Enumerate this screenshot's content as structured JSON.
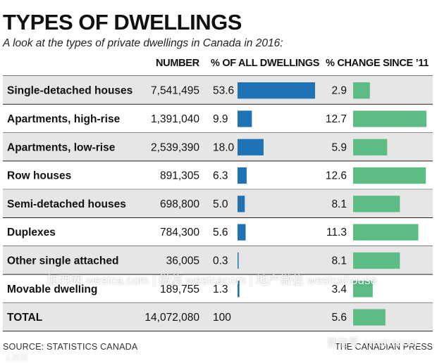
{
  "chart_data": {
    "type": "table",
    "title": "TYPES OF DWELLINGS",
    "subtitle": "A look at the types of private dwellings in Canada in 2016:",
    "columns": {
      "number": "NUMBER",
      "pct_all": "% OF ALL DWELLINGS",
      "pct_change": "% CHANGE SINCE ’11"
    },
    "rows": [
      {
        "label": "Single-detached houses",
        "number": "7,541,495",
        "pct_all": 53.6,
        "pct_all_label": "53.6",
        "pct_change": 2.9,
        "pct_change_label": "2.9"
      },
      {
        "label": "Apartments, high-rise",
        "number": "1,391,040",
        "pct_all": 9.9,
        "pct_all_label": "9.9",
        "pct_change": 12.7,
        "pct_change_label": "12.7"
      },
      {
        "label": "Apartments, low-rise",
        "number": "2,539,390",
        "pct_all": 18.0,
        "pct_all_label": "18.0",
        "pct_change": 5.9,
        "pct_change_label": "5.9"
      },
      {
        "label": "Row houses",
        "number": "891,305",
        "pct_all": 6.3,
        "pct_all_label": "6.3",
        "pct_change": 12.6,
        "pct_change_label": "12.6"
      },
      {
        "label": "Semi-detached houses",
        "number": "698,800",
        "pct_all": 5.0,
        "pct_all_label": "5.0",
        "pct_change": 8.1,
        "pct_change_label": "8.1"
      },
      {
        "label": "Duplexes",
        "number": "784,300",
        "pct_all": 5.6,
        "pct_all_label": "5.6",
        "pct_change": 11.3,
        "pct_change_label": "11.3"
      },
      {
        "label": "Other single attached",
        "number": "36,005",
        "pct_all": 0.3,
        "pct_all_label": "0.3",
        "pct_change": 8.1,
        "pct_change_label": "8.1"
      },
      {
        "label": "Movable dwelling",
        "number": "189,755",
        "pct_all": 1.3,
        "pct_all_label": "1.3",
        "pct_change": 3.4,
        "pct_change_label": "3.4"
      }
    ],
    "total": {
      "label": "TOTAL",
      "number": "14,072,080",
      "pct_all_label": "100",
      "pct_change": 5.6,
      "pct_change_label": "5.6"
    },
    "colors": {
      "pct_all_bar": "#1f73b4",
      "pct_change_bar": "#5dbb84",
      "row_shade": "#e6e6e6",
      "rule": "#222222"
    }
  },
  "footer": {
    "source": "SOURCE: STATISTICS CANADA",
    "credit": "THE CANADIAN PRESS"
  },
  "watermarks": {
    "center": "加西网 westca.com | 微信 westcacom | 地产微信 westcahouse",
    "brand": "微信号: westcacom",
    "small": "人民网"
  }
}
